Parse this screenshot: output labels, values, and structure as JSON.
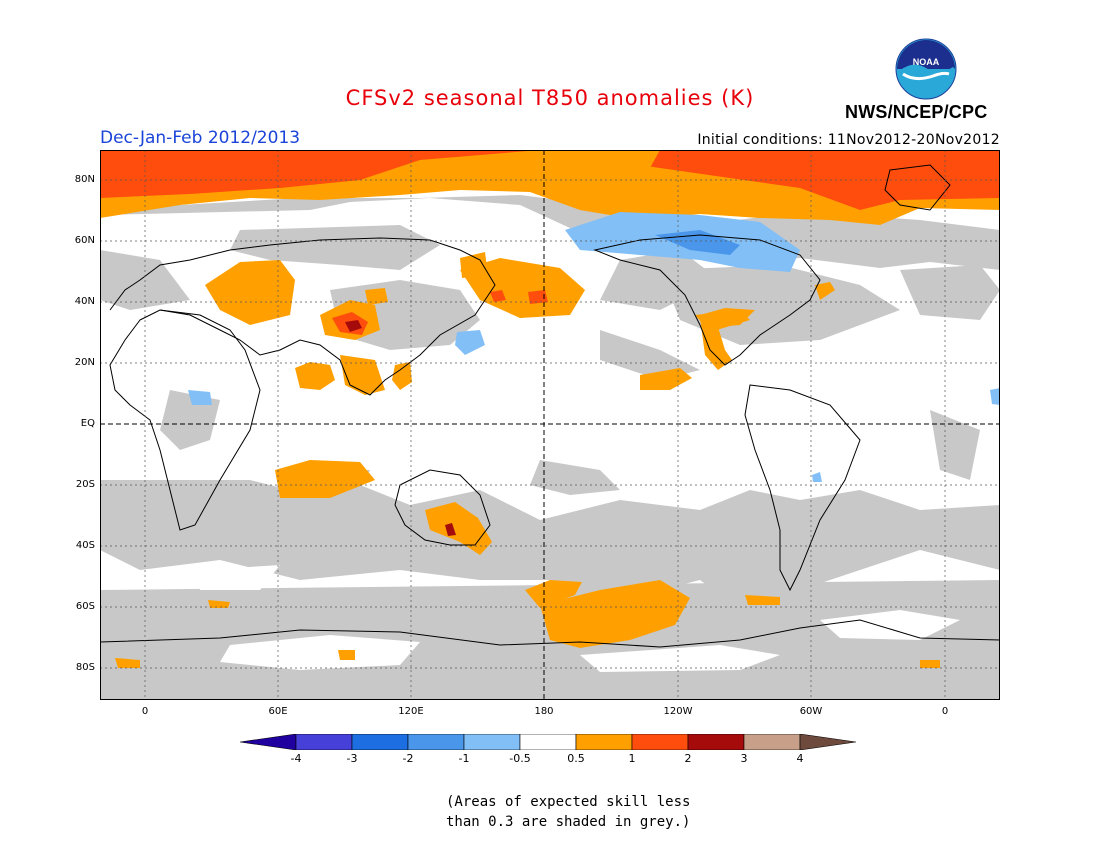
{
  "title": "CFSv2 seasonal T850 anomalies (K)",
  "season": "Dec-Jan-Feb 2012/2013",
  "initial_conditions": "Initial conditions: 11Nov2012-20Nov2012",
  "agency": "NWS/NCEP/CPC",
  "logo_text": "NOAA",
  "lat_labels": [
    "80N",
    "60N",
    "40N",
    "20N",
    "EQ",
    "20S",
    "40S",
    "60S",
    "80S"
  ],
  "lon_labels": [
    "0",
    "60E",
    "120E",
    "180",
    "120W",
    "60W",
    "0"
  ],
  "colorbar": {
    "labels": [
      "-4",
      "-3",
      "-2",
      "-1",
      "-0.5",
      "0.5",
      "1",
      "2",
      "3",
      "4"
    ],
    "colors": [
      "#20009e",
      "#4640d8",
      "#1d6ee0",
      "#4a96ea",
      "#82bff6",
      "#ffffff",
      "#ffa000",
      "#ff4d0e",
      "#a50b0b",
      "#c8a089",
      "#6e4a3c"
    ]
  },
  "skill_note": {
    "line1": "(Areas of expected skill less",
    "line2": "than 0.3 are shaded in grey.)"
  },
  "legend_colors": {
    "grey_low_skill": "#c8c8c8",
    "warm_0_5_to_1": "#ffa000",
    "warm_1_to_2": "#ff4d0e",
    "warm_2_to_3": "#a50b0b",
    "cool_neg1_to_neg0_5": "#82bff6",
    "cool_neg2_to_neg1": "#4a96ea"
  }
}
